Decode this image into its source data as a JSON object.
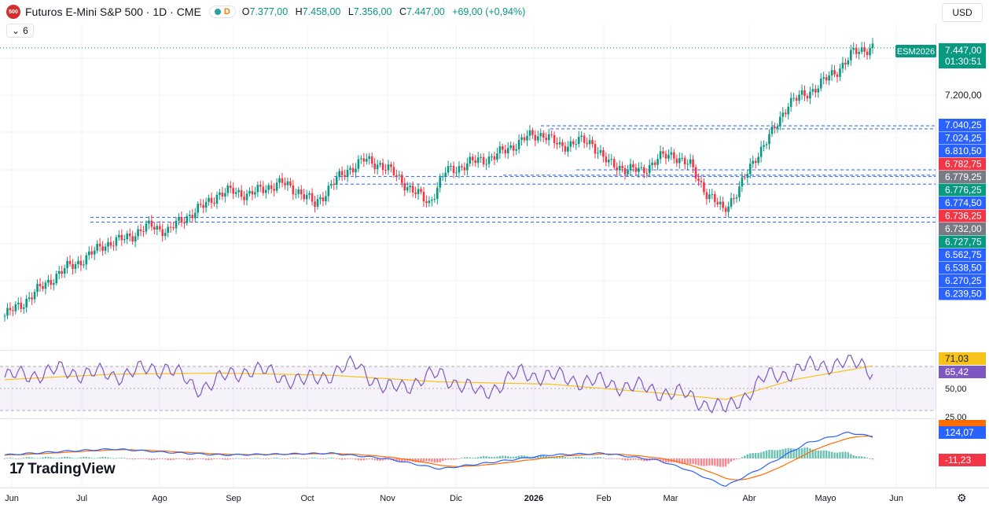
{
  "header": {
    "logo_text": "500",
    "title": "Futuros E-Mini S&P 500 · 1D · CME",
    "mode_label": "D",
    "open_key": "O",
    "open": "7.377,00",
    "high_key": "H",
    "high": "7.458,00",
    "low_key": "L",
    "low": "7.356,00",
    "close_key": "C",
    "close": "7.447,00",
    "change": "+69,00 (+0,94%)"
  },
  "sub_indicator_count": "6",
  "currency": "USD",
  "watermark": "TradingView",
  "colors": {
    "up": "#089981",
    "down": "#f23645",
    "rsi": "#7e57c2",
    "rsi_ma": "#f7c21a",
    "macd": "#2962ff",
    "signal": "#ff6d00",
    "level": "#2962ff"
  },
  "chart_data": {
    "type": "candlestick",
    "x_labels": [
      "Jun",
      "Jul",
      "Ago",
      "Sep",
      "Oct",
      "Nov",
      "Dic",
      "2026",
      "Feb",
      "Mar",
      "Abr",
      "Mayo",
      "Jun"
    ],
    "y_ticks": [
      "7.200,00"
    ],
    "ylim": [
      6000,
      7600
    ],
    "symbol_tag": "ESM2026",
    "last_price": "7.447,00",
    "countdown": "01:30:51",
    "price_anchors": [
      [
        0,
        6050
      ],
      [
        6,
        6110
      ],
      [
        12,
        6180
      ],
      [
        18,
        6250
      ],
      [
        24,
        6310
      ],
      [
        30,
        6350
      ],
      [
        36,
        6420
      ],
      [
        42,
        6440
      ],
      [
        48,
        6480
      ],
      [
        54,
        6520
      ],
      [
        60,
        6490
      ],
      [
        66,
        6560
      ],
      [
        72,
        6610
      ],
      [
        78,
        6680
      ],
      [
        84,
        6700
      ],
      [
        90,
        6680
      ],
      [
        96,
        6720
      ],
      [
        102,
        6740
      ],
      [
        108,
        6700
      ],
      [
        114,
        6630
      ],
      [
        120,
        6730
      ],
      [
        126,
        6810
      ],
      [
        132,
        6860
      ],
      [
        138,
        6840
      ],
      [
        144,
        6780
      ],
      [
        150,
        6700
      ],
      [
        156,
        6640
      ],
      [
        162,
        6800
      ],
      [
        168,
        6830
      ],
      [
        174,
        6860
      ],
      [
        180,
        6880
      ],
      [
        186,
        6930
      ],
      [
        192,
        6980
      ],
      [
        198,
        7000
      ],
      [
        204,
        6930
      ],
      [
        210,
        6960
      ],
      [
        216,
        6950
      ],
      [
        222,
        6840
      ],
      [
        228,
        6820
      ],
      [
        234,
        6800
      ],
      [
        240,
        6870
      ],
      [
        246,
        6890
      ],
      [
        252,
        6830
      ],
      [
        258,
        6690
      ],
      [
        264,
        6600
      ],
      [
        270,
        6710
      ],
      [
        276,
        6880
      ],
      [
        282,
        7000
      ],
      [
        288,
        7160
      ],
      [
        294,
        7200
      ],
      [
        300,
        7260
      ],
      [
        306,
        7330
      ],
      [
        312,
        7420
      ],
      [
        318,
        7450
      ]
    ],
    "levels": [
      {
        "label": "7.040,25",
        "value": 7040.25,
        "color": "#2962ff"
      },
      {
        "label": "7.024,25",
        "value": 7024.25,
        "color": "#2962ff"
      },
      {
        "label": "6.810,50",
        "value": 6810.5,
        "color": "#2962ff"
      },
      {
        "label": "6.782,75",
        "value": 6782.75,
        "color": "#f23645"
      },
      {
        "label": "6.779,25",
        "value": 6779.25,
        "color": "#787b86"
      },
      {
        "label": "6.776,25",
        "value": 6776.25,
        "color": "#089981"
      },
      {
        "label": "6.774,50",
        "value": 6774.5,
        "color": "#2962ff"
      },
      {
        "label": "6.736,25",
        "value": 6736.25,
        "color": "#f23645"
      },
      {
        "label": "6.732,00",
        "value": 6732.0,
        "color": "#787b86"
      },
      {
        "label": "6.727,75",
        "value": 6727.75,
        "color": "#089981"
      },
      {
        "label": "6.562,75",
        "value": 6562.75,
        "color": "#2962ff"
      },
      {
        "label": "6.538,50",
        "value": 6538.5,
        "color": "#2962ff"
      },
      {
        "label": "6.270,25",
        "value": 6270.25,
        "color": "#2962ff"
      },
      {
        "label": "6.239,50",
        "value": 6239.5,
        "color": "#2962ff"
      }
    ],
    "rsi": {
      "last": "65,42",
      "ma_last": "71,03",
      "ticks": [
        "50,00",
        "25,00"
      ],
      "anchors": [
        [
          0,
          60
        ],
        [
          20,
          66
        ],
        [
          40,
          62
        ],
        [
          60,
          70
        ],
        [
          70,
          50
        ],
        [
          90,
          68
        ],
        [
          110,
          56
        ],
        [
          130,
          72
        ],
        [
          140,
          48
        ],
        [
          160,
          63
        ],
        [
          175,
          45
        ],
        [
          190,
          64
        ],
        [
          210,
          58
        ],
        [
          230,
          52
        ],
        [
          250,
          44
        ],
        [
          265,
          30
        ],
        [
          280,
          60
        ],
        [
          300,
          72
        ],
        [
          315,
          73
        ],
        [
          320,
          65
        ]
      ],
      "ma_anchors": [
        [
          0,
          58
        ],
        [
          40,
          63
        ],
        [
          80,
          64
        ],
        [
          120,
          62
        ],
        [
          160,
          56
        ],
        [
          200,
          54
        ],
        [
          240,
          46
        ],
        [
          265,
          40
        ],
        [
          290,
          58
        ],
        [
          320,
          71
        ]
      ]
    },
    "macd": {
      "macd_last": "124,07",
      "hist_last": "-11,23",
      "anchors": [
        [
          0,
          20
        ],
        [
          20,
          40
        ],
        [
          40,
          55
        ],
        [
          60,
          35
        ],
        [
          80,
          20
        ],
        [
          100,
          25
        ],
        [
          120,
          30
        ],
        [
          140,
          0
        ],
        [
          160,
          -60
        ],
        [
          180,
          -20
        ],
        [
          200,
          20
        ],
        [
          220,
          30
        ],
        [
          240,
          -10
        ],
        [
          250,
          -60
        ],
        [
          265,
          -160
        ],
        [
          280,
          -40
        ],
        [
          295,
          90
        ],
        [
          310,
          150
        ],
        [
          320,
          124
        ]
      ]
    }
  }
}
